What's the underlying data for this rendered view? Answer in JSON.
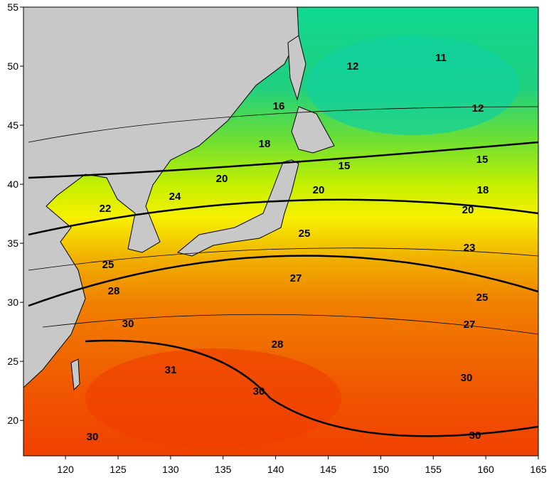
{
  "map": {
    "xlim": [
      116,
      165
    ],
    "ylim": [
      17,
      55
    ],
    "xticks": [
      120,
      125,
      130,
      135,
      140,
      145,
      150,
      155,
      160,
      165
    ],
    "yticks": [
      20,
      25,
      30,
      35,
      40,
      45,
      50,
      55
    ],
    "contour_labels": [
      11,
      12,
      12,
      16,
      18,
      15,
      15,
      20,
      20,
      18,
      20,
      24,
      22,
      25,
      25,
      23,
      27,
      28,
      25,
      27,
      30,
      28,
      31,
      30,
      30,
      30,
      30
    ]
  }
}
